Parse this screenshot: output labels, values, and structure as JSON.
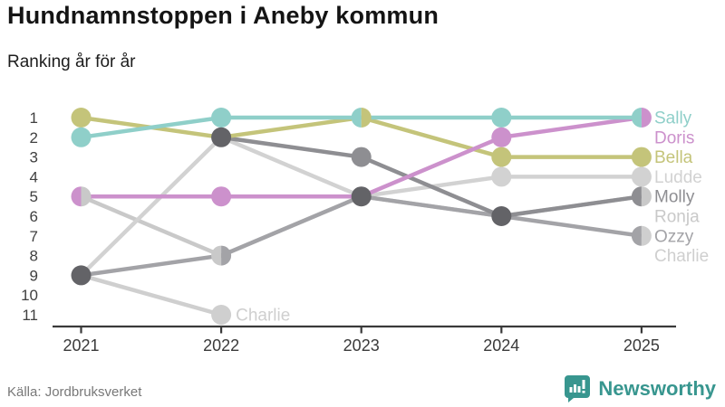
{
  "header": {
    "title": "Hundnamnstoppen i Aneby kommun",
    "subtitle": "Ranking år för år"
  },
  "chart_data": {
    "type": "line",
    "variant": "bump-ranking-chart",
    "title": "Hundnamnstoppen i Aneby kommun",
    "subtitle": "Ranking år för år",
    "x": [
      2021,
      2022,
      2023,
      2024,
      2025
    ],
    "y_ticks": [
      1,
      2,
      3,
      4,
      5,
      6,
      7,
      8,
      9,
      10,
      11
    ],
    "ylim": [
      1,
      11
    ],
    "y_inverted": true,
    "grid": false,
    "legend_position": "right-of-last-point",
    "series": [
      {
        "name": "Sally",
        "color": "#8fcfc9",
        "values": [
          2,
          1,
          1,
          1,
          1
        ],
        "label_slot": 1
      },
      {
        "name": "Doris",
        "color": "#cc91cc",
        "values": [
          5,
          5,
          5,
          2,
          1
        ],
        "label_slot": 2
      },
      {
        "name": "Bella",
        "color": "#c4c47a",
        "values": [
          1,
          2,
          1,
          3,
          3
        ],
        "label_slot": 3
      },
      {
        "name": "Ludde",
        "color": "#d2d2d2",
        "values": [
          9,
          2,
          5,
          4,
          4
        ],
        "label_slot": 4
      },
      {
        "name": "Molly",
        "color": "#8e8e92",
        "values": [
          null,
          2,
          3,
          6,
          5
        ],
        "label_slot": 5
      },
      {
        "name": "Ronja",
        "color": "#c9c9c9",
        "values": [
          5,
          8,
          5,
          6,
          5
        ],
        "label_slot": 6
      },
      {
        "name": "Ozzy",
        "color": "#a3a3a7",
        "values": [
          9,
          8,
          5,
          6,
          7
        ],
        "label_slot": 7
      },
      {
        "name": "Charlie",
        "color": "#cfcfcf",
        "values": [
          9,
          11,
          null,
          null,
          7
        ],
        "label_slot": 8
      }
    ],
    "tie_dot_color": "#636367",
    "axis_color": "#3a3a3a",
    "tick_label_color": "#404040",
    "annotations": [
      {
        "text": "Charlie",
        "year": 2022,
        "rank": 11
      }
    ]
  },
  "footer": {
    "source": "Källa: Jordbruksverket",
    "brand": "Newsworthy",
    "brand_color": "#38968f"
  }
}
